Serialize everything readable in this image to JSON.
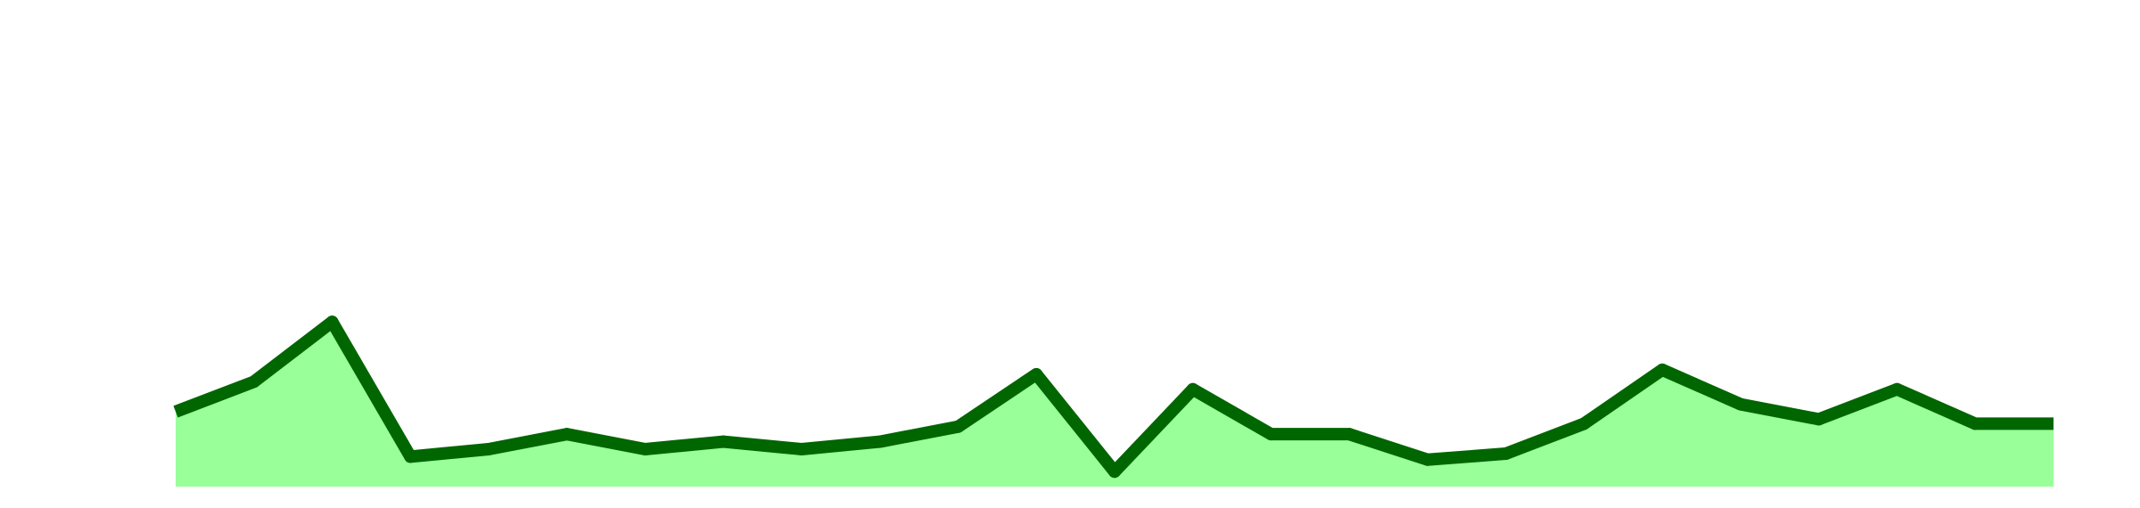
{
  "chart_data": {
    "type": "area",
    "x": [
      1,
      2,
      3,
      4,
      5,
      6,
      7,
      8,
      9,
      10,
      11,
      12,
      13,
      14,
      15,
      16,
      17,
      18,
      19,
      20,
      21,
      22,
      23,
      24,
      25
    ],
    "series": [
      {
        "values": [
          5,
          7,
          11,
          2,
          2.5,
          3.5,
          2.5,
          3,
          2.5,
          3,
          4,
          7.5,
          1,
          6.5,
          3.5,
          3.5,
          1.8,
          2.2,
          4.2,
          7.8,
          5.5,
          4.5,
          6.5,
          4.2,
          4.2
        ],
        "fill_color": "#99ff99",
        "line_color": "#006600"
      }
    ],
    "xlabel": "",
    "ylabel": "",
    "ylim": [
      0,
      31
    ],
    "grid": false,
    "legend": "none"
  }
}
